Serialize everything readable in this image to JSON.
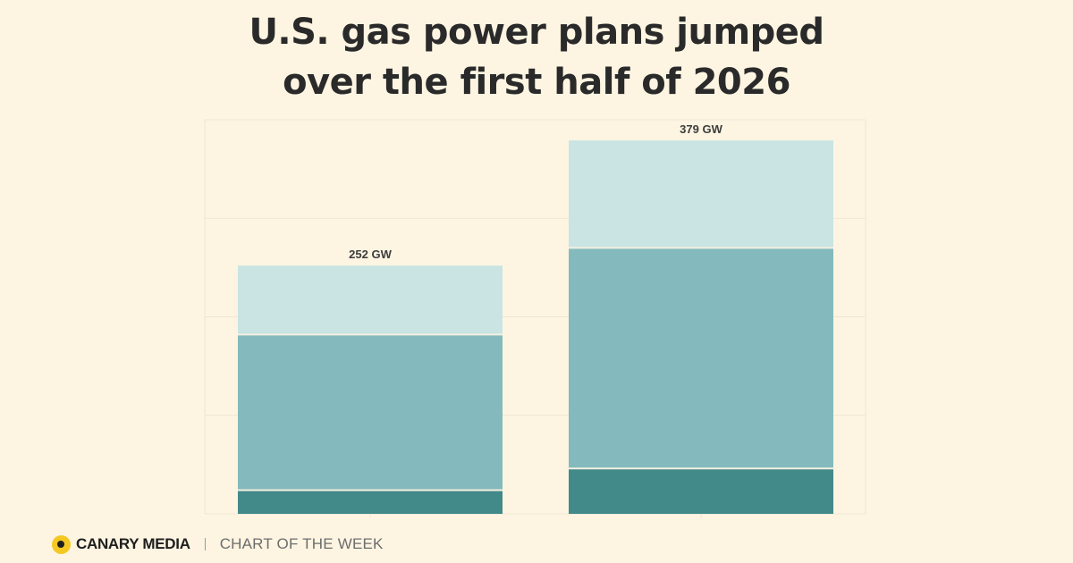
{
  "title": {
    "line1": "U.S. gas power plans jumped",
    "line2": "over the first half of 2026"
  },
  "footer": {
    "brand": "CANARY MEDIA",
    "tagline": "CHART OF THE WEEK",
    "logo_icon": "canary-dot-icon"
  },
  "colors": {
    "background": "#fdf5e2",
    "segment_bottom": "#42898a",
    "segment_middle": "#84babd",
    "segment_top": "#c9e4e3",
    "gridline": "#efe6d2"
  },
  "chart_data": {
    "type": "bar",
    "stacked": true,
    "categories": [
      "",
      ""
    ],
    "series": [
      {
        "values": [
          24,
          46
        ]
      },
      {
        "values": [
          158,
          224
        ]
      },
      {
        "values": [
          70,
          109
        ]
      }
    ],
    "totals": [
      252,
      379
    ],
    "total_labels": [
      "252 GW",
      "379 GW"
    ],
    "ylim": [
      0,
      400
    ],
    "grid": true,
    "legend": "none"
  }
}
